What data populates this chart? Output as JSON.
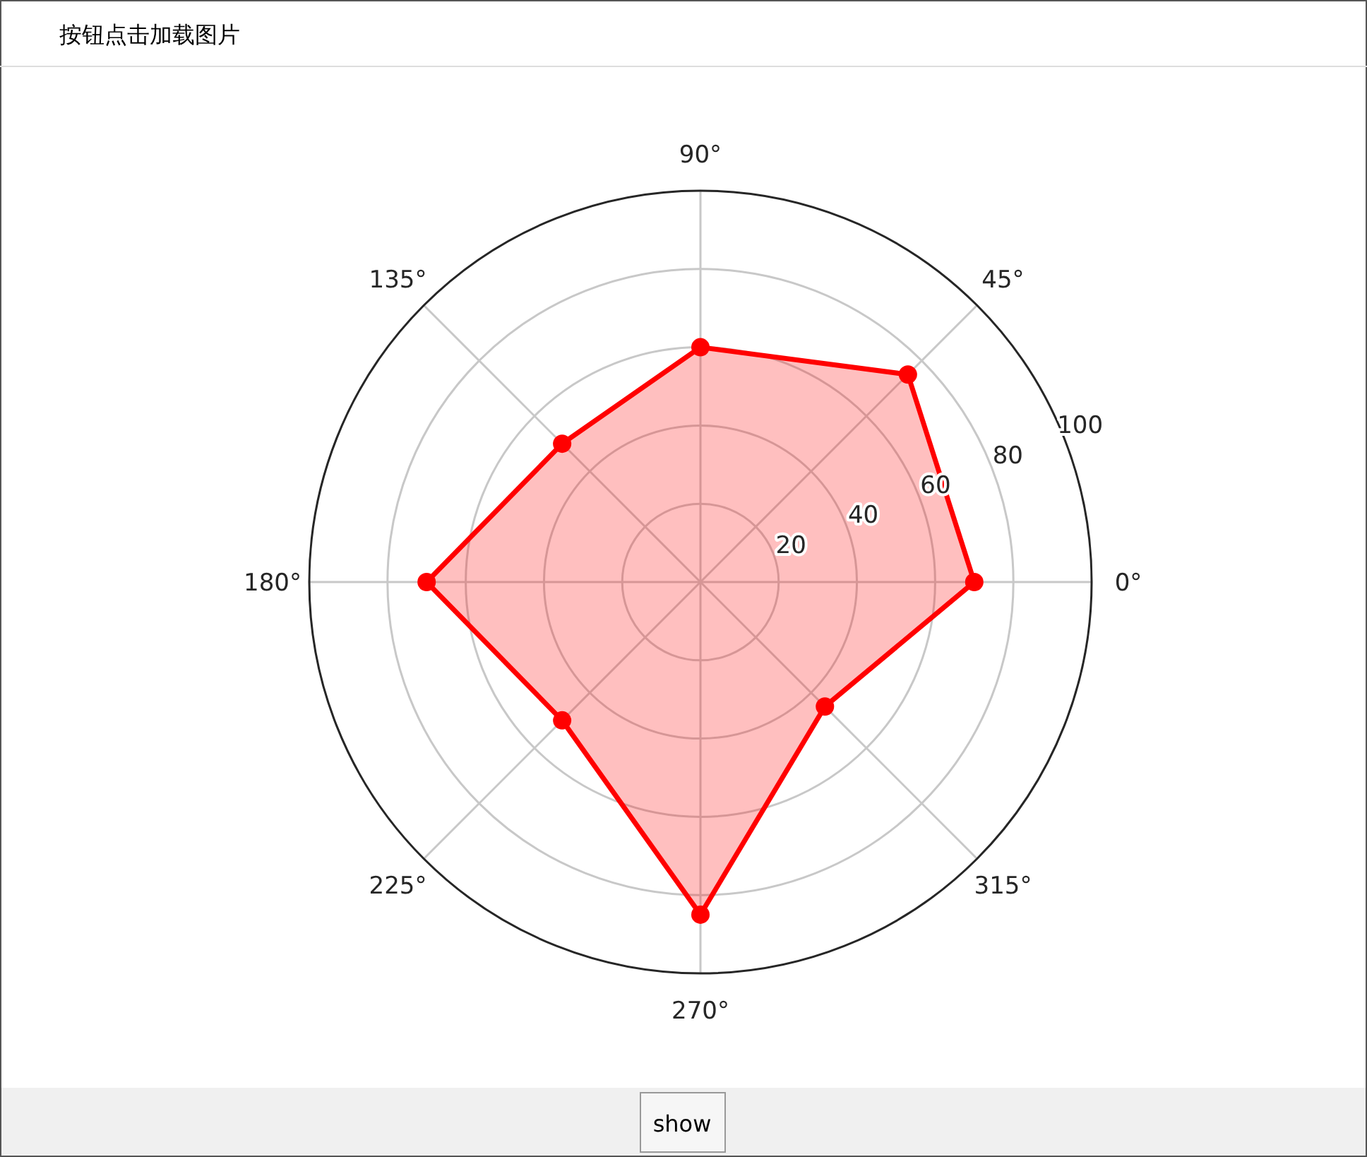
{
  "chart_data": {
    "type": "radar",
    "title": "按钮点击加载图片",
    "categories": [
      "90°",
      "45°",
      "0°",
      "315°",
      "270°",
      "225°",
      "180°",
      "135°"
    ],
    "series": [
      {
        "color": "#ff0000",
        "values": [
          60,
          75,
          70,
          45,
          85,
          50,
          70,
          50
        ]
      }
    ],
    "ylim": [
      0,
      100
    ],
    "yticks": [
      20,
      40,
      60,
      80,
      100
    ],
    "grid": true,
    "marker": "circle",
    "line_style": "solid",
    "annotations": [
      "show"
    ]
  }
}
